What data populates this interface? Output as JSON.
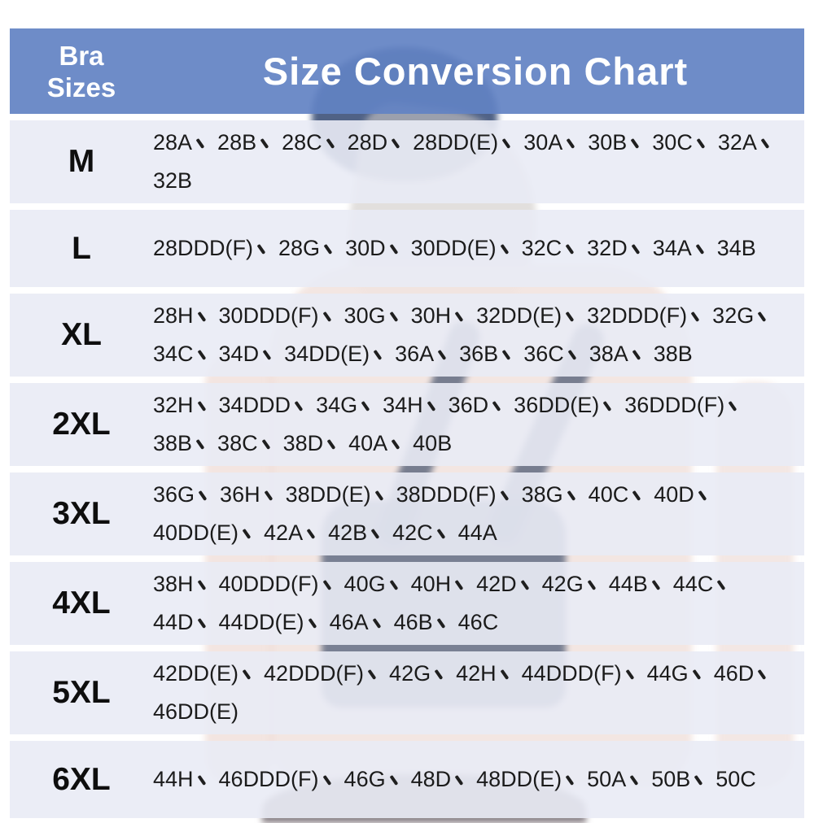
{
  "header": {
    "corner": {
      "line1": "Bra",
      "line2": "Sizes"
    },
    "title": "Size Conversion Chart"
  },
  "separator_glyph": "、",
  "chart_data": {
    "type": "table",
    "title": "Size Conversion Chart",
    "columns": [
      "Bra Sizes"
    ],
    "rows": [
      {
        "label": "M",
        "sizes": [
          "28A",
          "28B",
          "28C",
          "28D",
          "28DD(E)",
          "30A",
          "30B",
          "30C",
          "32A",
          "32B"
        ]
      },
      {
        "label": "L",
        "sizes": [
          "28DDD(F)",
          "28G",
          "30D",
          "30DD(E)",
          "32C",
          "32D",
          "34A",
          "34B"
        ]
      },
      {
        "label": "XL",
        "sizes": [
          "28H",
          "30DDD(F)",
          "30G",
          "30H",
          "32DD(E)",
          "32DDD(F)",
          "32G",
          "34C",
          "34D",
          "34DD(E)",
          "36A",
          "36B",
          "36C",
          "38A",
          "38B"
        ]
      },
      {
        "label": "2XL",
        "sizes": [
          "32H",
          "34DDD",
          "34G",
          "34H",
          "36D",
          "36DD(E)",
          "36DDD(F)",
          "38B",
          "38C",
          "38D",
          "40A",
          "40B"
        ]
      },
      {
        "label": "3XL",
        "sizes": [
          "36G",
          "36H",
          "38DD(E)",
          "38DDD(F)",
          "38G",
          "40C",
          "40D",
          "40DD(E)",
          "42A",
          "42B",
          "42C",
          "44A"
        ]
      },
      {
        "label": "4XL",
        "sizes": [
          "38H",
          "40DDD(F)",
          "40G",
          "40H",
          "42D",
          "42G",
          "44B",
          "44C",
          "44D",
          "44DD(E)",
          "46A",
          "46B",
          "46C"
        ]
      },
      {
        "label": "5XL",
        "sizes": [
          "42DD(E)",
          "42DDD(F)",
          "42G",
          "42H",
          "44DDD(F)",
          "44G",
          "46D",
          "46DD(E)"
        ]
      },
      {
        "label": "6XL",
        "sizes": [
          "44H",
          "46DDD(F)",
          "46G",
          "48D",
          "48DD(E)",
          "50A",
          "50B",
          "50C"
        ]
      }
    ]
  },
  "colors": {
    "header_bg": "rgba(98,130,195,0.92)",
    "header_text": "#ffffff",
    "row_bg": "rgba(233,235,245,0.9)",
    "row_text": "#1b1b1b"
  }
}
